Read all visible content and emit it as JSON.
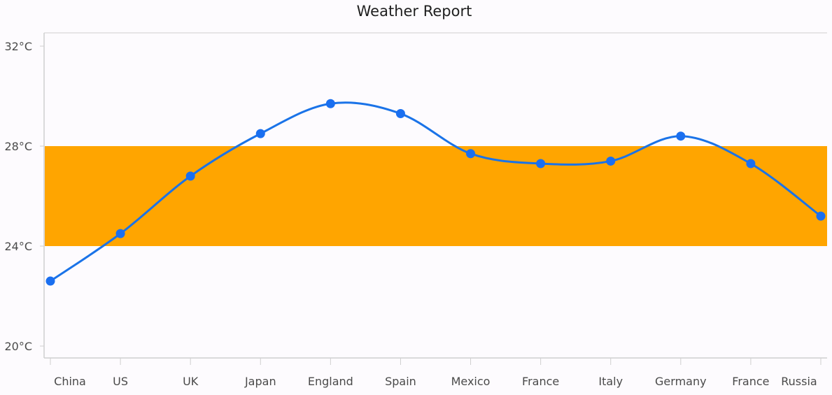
{
  "chart_data": {
    "type": "line",
    "title": "Weather Report",
    "xlabel": "",
    "ylabel": "",
    "categories": [
      "China",
      "US",
      "UK",
      "Japan",
      "England",
      "Spain",
      "Mexico",
      "France",
      "Italy",
      "Germany",
      "France",
      "Russia"
    ],
    "series": [
      {
        "values": [
          22.6,
          24.5,
          26.8,
          28.5,
          29.7,
          29.3,
          27.7,
          27.3,
          27.4,
          28.4,
          27.3,
          25.2
        ]
      }
    ],
    "ylim": [
      20,
      32
    ],
    "yticks": [
      20,
      24,
      28,
      32
    ],
    "ytick_labels": [
      "20°C",
      "24°C",
      "28°C",
      "32°C"
    ],
    "band": {
      "from": 24,
      "to": 28
    },
    "colors": {
      "line": "#1a73e8",
      "marker": "#1a6ff0",
      "band": "#ffa500",
      "axis": "#cfcfcf",
      "background": "#fdfbfe"
    },
    "grid": false,
    "legend": "none"
  }
}
